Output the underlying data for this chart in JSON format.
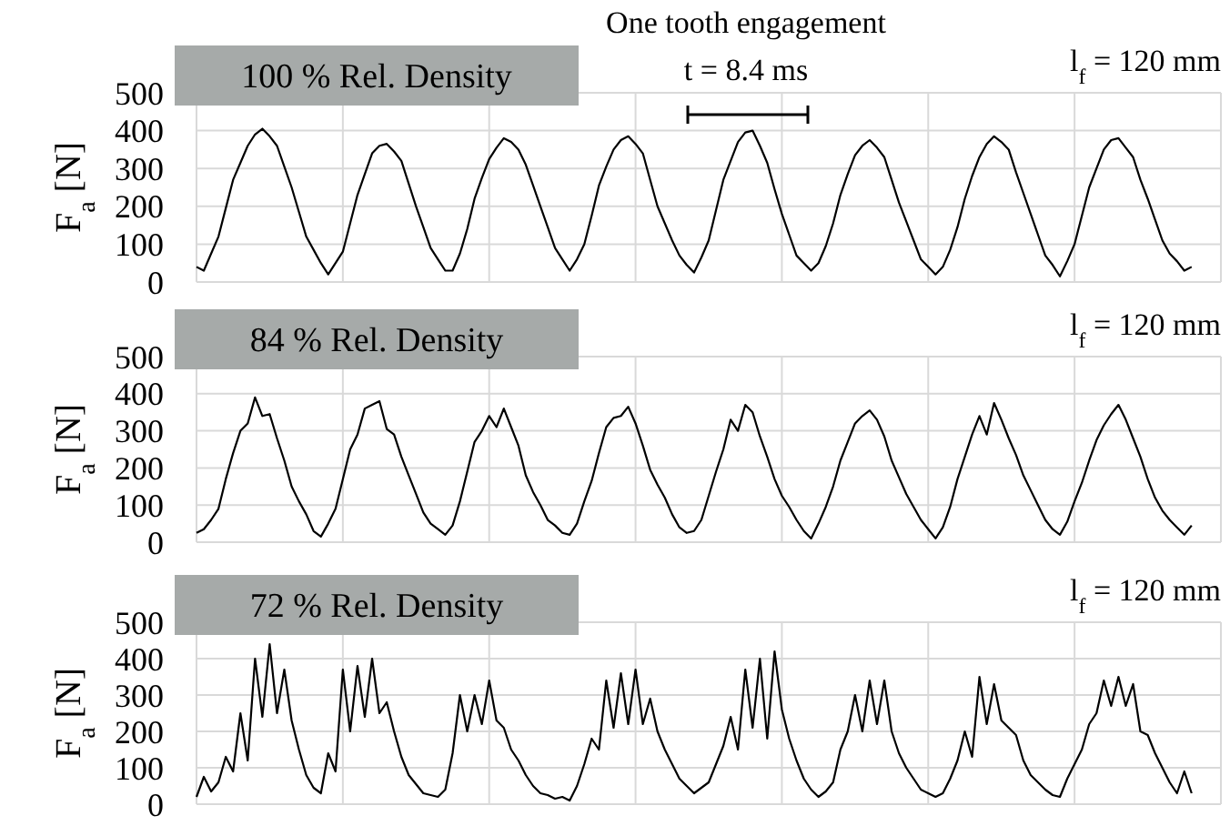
{
  "chart_data": [
    {
      "type": "line",
      "title": "100 % Rel. Density",
      "ylabel": "F$_{a}$ [N]",
      "annotations": [
        "One tooth engagement",
        "t = 8.4 ms",
        "l$_{f}$ = 120 mm"
      ],
      "categories": [
        null,
        null,
        null,
        null,
        null,
        null,
        null,
        null,
        null,
        null,
        null,
        null,
        null,
        null,
        null,
        null,
        null,
        null,
        null,
        null,
        null,
        null,
        null,
        null,
        null,
        null,
        null,
        null,
        null,
        null,
        null,
        null,
        null,
        null,
        null,
        null,
        null,
        null,
        null,
        null,
        null,
        null,
        null,
        null,
        null,
        null,
        null,
        null,
        null,
        null,
        null,
        null,
        null,
        null,
        null,
        null,
        null,
        null,
        null,
        null,
        null,
        null,
        null,
        null,
        null,
        null,
        null,
        null,
        null,
        null,
        null,
        null,
        null,
        null,
        null,
        null,
        null,
        null,
        null,
        null,
        null,
        null,
        null,
        null,
        null,
        null,
        null,
        null,
        null,
        null,
        null,
        null,
        null,
        null,
        null,
        null,
        null,
        null,
        null,
        null,
        null,
        null,
        null,
        null,
        null,
        null,
        null,
        null,
        null,
        null,
        null,
        null,
        null,
        null,
        null,
        null,
        null,
        null,
        null,
        null,
        null,
        null,
        null,
        null,
        null,
        null,
        null,
        null,
        null,
        null,
        null,
        null,
        null,
        null,
        null,
        null,
        null,
        null,
        null,
        null,
        null
      ],
      "ylim": [
        0,
        500
      ],
      "yticks": [
        0,
        100,
        200,
        300,
        400,
        500
      ],
      "grid": true,
      "tick_labels": "y",
      "marker": "none",
      "line_style": "solid",
      "series": [
        {
          "color": "#000000",
          "values": [
            40,
            30,
            75,
            120,
            195,
            270,
            315,
            360,
            390,
            405,
            385,
            360,
            305,
            250,
            185,
            120,
            85,
            50,
            20,
            50,
            80,
            155,
            230,
            285,
            340,
            360,
            365,
            345,
            320,
            260,
            200,
            145,
            90,
            60,
            30,
            30,
            75,
            140,
            220,
            275,
            325,
            355,
            380,
            370,
            350,
            310,
            255,
            200,
            145,
            90,
            60,
            30,
            60,
            100,
            175,
            255,
            305,
            350,
            375,
            385,
            365,
            340,
            270,
            200,
            155,
            110,
            70,
            45,
            25,
            65,
            110,
            190,
            270,
            320,
            370,
            395,
            400,
            360,
            315,
            245,
            180,
            125,
            70,
            50,
            30,
            50,
            95,
            155,
            230,
            285,
            335,
            360,
            375,
            355,
            330,
            270,
            210,
            160,
            110,
            60,
            40,
            20,
            40,
            85,
            145,
            220,
            280,
            330,
            365,
            385,
            370,
            350,
            290,
            235,
            180,
            125,
            70,
            45,
            15,
            55,
            100,
            175,
            250,
            300,
            350,
            375,
            380,
            355,
            330,
            270,
            220,
            165,
            110,
            75,
            55,
            30,
            40,
            null,
            null,
            null,
            null
          ]
        }
      ]
    },
    {
      "type": "line",
      "title": "84 % Rel. Density",
      "ylabel": "F$_{a}$ [N]",
      "annotations": [
        "l$_{f}$ = 120 mm"
      ],
      "categories": [
        null,
        null,
        null,
        null,
        null,
        null,
        null,
        null,
        null,
        null,
        null,
        null,
        null,
        null,
        null,
        null,
        null,
        null,
        null,
        null,
        null,
        null,
        null,
        null,
        null,
        null,
        null,
        null,
        null,
        null,
        null,
        null,
        null,
        null,
        null,
        null,
        null,
        null,
        null,
        null,
        null,
        null,
        null,
        null,
        null,
        null,
        null,
        null,
        null,
        null,
        null,
        null,
        null,
        null,
        null,
        null,
        null,
        null,
        null,
        null,
        null,
        null,
        null,
        null,
        null,
        null,
        null,
        null,
        null,
        null,
        null,
        null,
        null,
        null,
        null,
        null,
        null,
        null,
        null,
        null,
        null,
        null,
        null,
        null,
        null,
        null,
        null,
        null,
        null,
        null,
        null,
        null,
        null,
        null,
        null,
        null,
        null,
        null,
        null,
        null,
        null,
        null,
        null,
        null,
        null,
        null,
        null,
        null,
        null,
        null,
        null,
        null,
        null,
        null,
        null,
        null,
        null,
        null,
        null,
        null,
        null,
        null,
        null,
        null,
        null,
        null,
        null,
        null,
        null,
        null,
        null,
        null,
        null,
        null,
        null,
        null,
        null,
        null,
        null,
        null,
        null
      ],
      "ylim": [
        0,
        500
      ],
      "yticks": [
        0,
        100,
        200,
        300,
        400,
        500
      ],
      "grid": true,
      "tick_labels": "y",
      "marker": "none",
      "line_style": "solid",
      "series": [
        {
          "color": "#000000",
          "values": [
            25,
            35,
            60,
            90,
            170,
            240,
            300,
            320,
            390,
            340,
            345,
            280,
            220,
            150,
            110,
            75,
            30,
            15,
            50,
            90,
            170,
            250,
            290,
            360,
            370,
            380,
            305,
            290,
            230,
            180,
            130,
            80,
            50,
            35,
            20,
            45,
            110,
            190,
            270,
            300,
            340,
            310,
            360,
            310,
            260,
            180,
            135,
            100,
            60,
            45,
            25,
            20,
            50,
            110,
            165,
            240,
            310,
            335,
            340,
            365,
            320,
            260,
            195,
            155,
            120,
            75,
            40,
            25,
            30,
            60,
            125,
            190,
            250,
            330,
            300,
            370,
            350,
            285,
            230,
            170,
            125,
            95,
            60,
            30,
            10,
            50,
            95,
            150,
            220,
            270,
            320,
            340,
            355,
            330,
            285,
            220,
            175,
            130,
            95,
            60,
            35,
            10,
            40,
            95,
            170,
            230,
            290,
            340,
            290,
            375,
            330,
            280,
            235,
            180,
            140,
            100,
            60,
            35,
            20,
            55,
            110,
            160,
            220,
            275,
            315,
            345,
            370,
            330,
            280,
            230,
            170,
            120,
            85,
            60,
            40,
            20,
            45,
            null,
            null,
            null,
            null
          ]
        }
      ]
    },
    {
      "type": "line",
      "title": "72 % Rel. Density",
      "ylabel": "F$_{a}$ [N]",
      "annotations": [
        "l$_{f}$ = 120 mm"
      ],
      "categories": [
        null,
        null,
        null,
        null,
        null,
        null,
        null,
        null,
        null,
        null,
        null,
        null,
        null,
        null,
        null,
        null,
        null,
        null,
        null,
        null,
        null,
        null,
        null,
        null,
        null,
        null,
        null,
        null,
        null,
        null,
        null,
        null,
        null,
        null,
        null,
        null,
        null,
        null,
        null,
        null,
        null,
        null,
        null,
        null,
        null,
        null,
        null,
        null,
        null,
        null,
        null,
        null,
        null,
        null,
        null,
        null,
        null,
        null,
        null,
        null,
        null,
        null,
        null,
        null,
        null,
        null,
        null,
        null,
        null,
        null,
        null,
        null,
        null,
        null,
        null,
        null,
        null,
        null,
        null,
        null,
        null,
        null,
        null,
        null,
        null,
        null,
        null,
        null,
        null,
        null,
        null,
        null,
        null,
        null,
        null,
        null,
        null,
        null,
        null,
        null,
        null,
        null,
        null,
        null,
        null,
        null,
        null,
        null,
        null,
        null,
        null,
        null,
        null,
        null,
        null,
        null,
        null,
        null,
        null,
        null,
        null,
        null,
        null,
        null,
        null,
        null,
        null,
        null,
        null,
        null,
        null,
        null,
        null,
        null,
        null,
        null,
        null,
        null,
        null,
        null,
        null
      ],
      "ylim": [
        0,
        500
      ],
      "yticks": [
        0,
        100,
        200,
        300,
        400,
        500
      ],
      "grid": true,
      "tick_labels": "y",
      "marker": "none",
      "line_style": "solid",
      "series": [
        {
          "color": "#000000",
          "values": [
            20,
            75,
            35,
            60,
            130,
            90,
            250,
            120,
            400,
            240,
            440,
            250,
            370,
            230,
            150,
            80,
            45,
            30,
            140,
            90,
            370,
            200,
            380,
            240,
            400,
            250,
            280,
            200,
            130,
            80,
            55,
            30,
            25,
            20,
            40,
            140,
            300,
            200,
            300,
            220,
            340,
            230,
            210,
            150,
            120,
            80,
            50,
            30,
            25,
            15,
            20,
            10,
            50,
            110,
            180,
            150,
            340,
            210,
            360,
            220,
            370,
            220,
            290,
            200,
            150,
            110,
            70,
            50,
            30,
            45,
            60,
            110,
            160,
            240,
            150,
            370,
            210,
            400,
            180,
            420,
            260,
            180,
            120,
            70,
            40,
            20,
            35,
            60,
            150,
            200,
            300,
            200,
            340,
            220,
            340,
            200,
            140,
            100,
            70,
            40,
            30,
            20,
            30,
            70,
            120,
            200,
            130,
            350,
            220,
            330,
            230,
            210,
            190,
            120,
            80,
            60,
            40,
            25,
            20,
            70,
            110,
            150,
            220,
            250,
            340,
            270,
            350,
            270,
            330,
            200,
            190,
            140,
            100,
            60,
            30,
            90,
            30,
            null,
            null,
            null,
            null
          ]
        }
      ]
    }
  ]
}
